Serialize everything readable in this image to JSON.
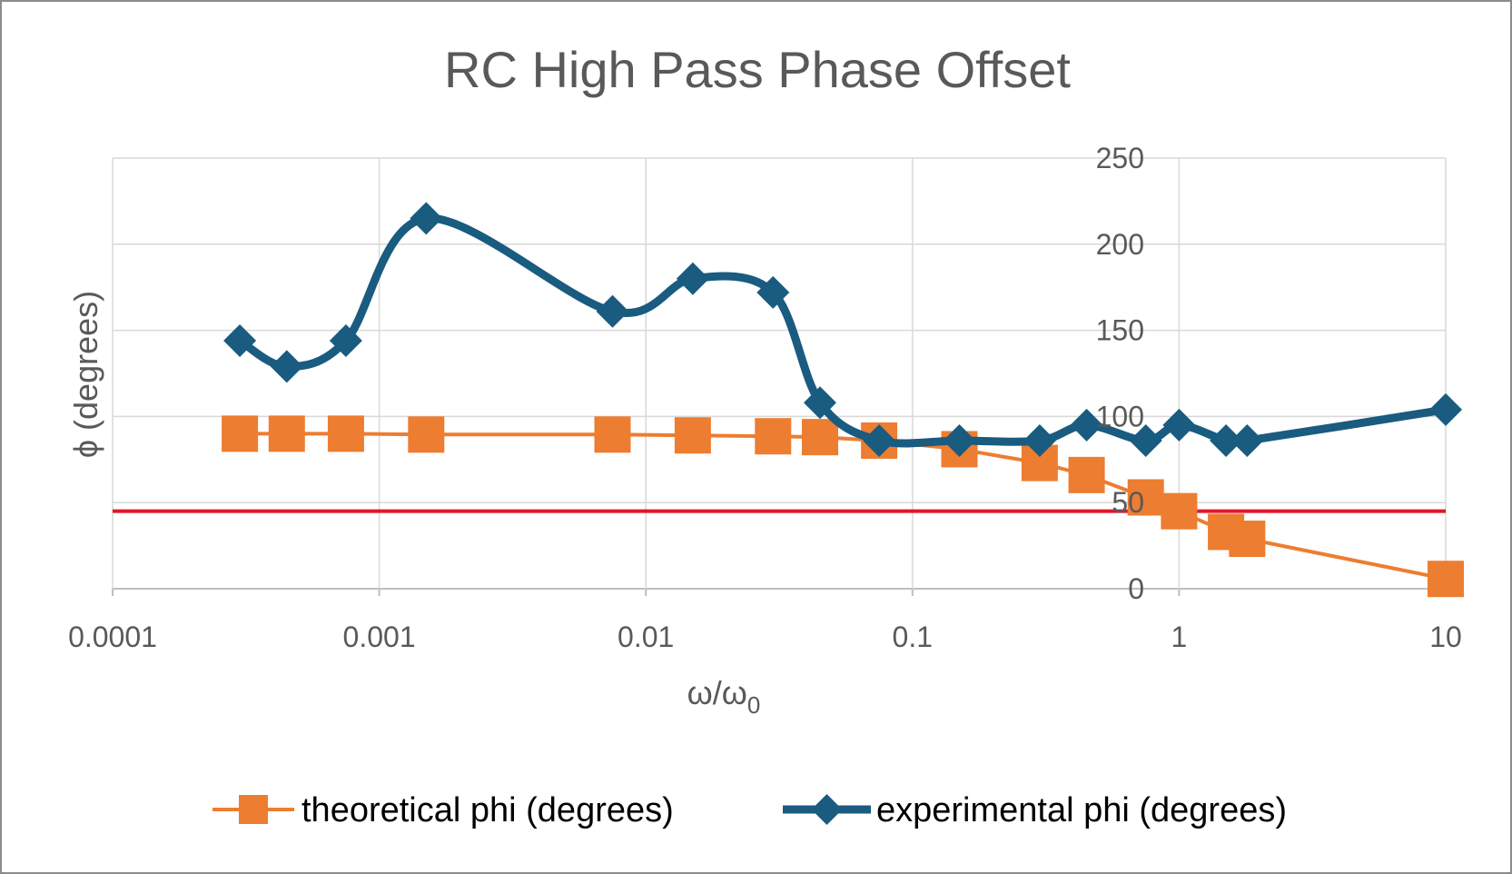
{
  "chart_data": {
    "type": "line",
    "title": "RC High Pass Phase Offset",
    "xlabel": "ω/ω",
    "xlabel_subscript": "0",
    "ylabel": "ϕ (degrees)",
    "x_scale": "log",
    "xlim": [
      0.0001,
      10
    ],
    "ylim": [
      0,
      250
    ],
    "x_ticks": [
      "0.0001",
      "0.001",
      "0.01",
      "0.1",
      "1",
      "10"
    ],
    "y_ticks": [
      "0",
      "50",
      "100",
      "150",
      "200",
      "250"
    ],
    "grid": true,
    "legend_position": "bottom",
    "reference_line": {
      "y": 45,
      "color": "#e0162b"
    },
    "series": [
      {
        "name": "theoretical phi (degrees)",
        "color": "#ed7d31",
        "marker": "square",
        "smooth": false,
        "x": [
          0.0003,
          0.00045,
          0.00075,
          0.0015,
          0.0075,
          0.015,
          0.03,
          0.045,
          0.075,
          0.15,
          0.3,
          0.45,
          0.75,
          1,
          1.5,
          1.8,
          10
        ],
        "y": [
          90,
          90,
          90,
          89.5,
          89.5,
          89,
          88.5,
          88,
          86,
          81,
          73,
          66,
          53,
          45,
          33,
          29,
          5.7
        ]
      },
      {
        "name": "experimental phi (degrees)",
        "color": "#1a5b80",
        "marker": "diamond",
        "smooth": true,
        "x": [
          0.0003,
          0.00045,
          0.00075,
          0.0015,
          0.0075,
          0.015,
          0.03,
          0.045,
          0.075,
          0.15,
          0.3,
          0.45,
          0.75,
          1,
          1.5,
          1.8,
          10
        ],
        "y": [
          144,
          129,
          144,
          215,
          161,
          180,
          172,
          108,
          86,
          86,
          86,
          95,
          86,
          95,
          86,
          86,
          104
        ]
      }
    ]
  }
}
